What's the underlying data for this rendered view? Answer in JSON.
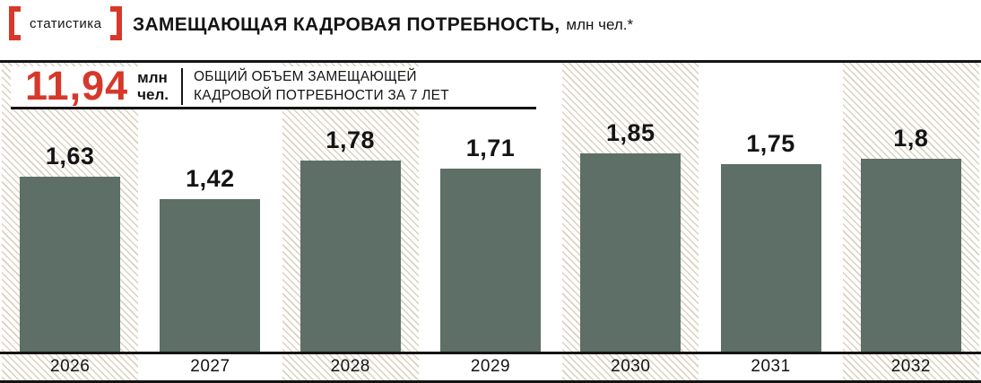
{
  "colors": {
    "accent_red": "#d6382a",
    "bar": "#5d6f66",
    "hatch_line": "#d9d2c0",
    "text": "#141414"
  },
  "header": {
    "badge_label": "статистика",
    "title": "ЗАМЕЩАЮЩАЯ КАДРОВАЯ ПОТРЕБНОСТЬ,",
    "title_unit": "млн чел.*"
  },
  "summary": {
    "value": "11,94",
    "unit_line1": "млн",
    "unit_line2": "чел.",
    "caption_line1": "ОБЩИЙ ОБЪЕМ ЗАМЕЩАЮЩЕЙ",
    "caption_line2": "КАДРОВОЙ ПОТРЕБНОСТИ ЗА 7 ЛЕТ"
  },
  "chart_data": {
    "type": "bar",
    "title": "ЗАМЕЩАЮЩАЯ КАДРОВАЯ ПОТРЕБНОСТЬ, млн чел.*",
    "categories": [
      "2026",
      "2027",
      "2028",
      "2029",
      "2030",
      "2031",
      "2032"
    ],
    "values": [
      1.63,
      1.42,
      1.78,
      1.71,
      1.85,
      1.75,
      1.8
    ],
    "value_labels": [
      "1,63",
      "1,42",
      "1,78",
      "1,71",
      "1,85",
      "1,75",
      "1,8"
    ],
    "ylabel": "млн чел.",
    "ylim": [
      0,
      2
    ],
    "grid": false,
    "legend_position": "none",
    "hatched_columns": [
      0,
      2,
      4,
      6
    ],
    "total_over_7_years": 11.94
  }
}
